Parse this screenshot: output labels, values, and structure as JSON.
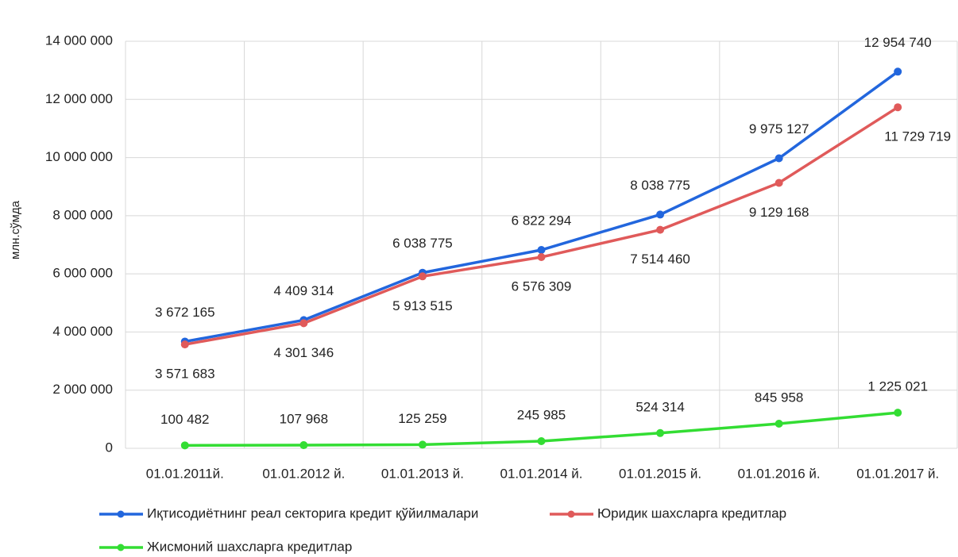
{
  "chart_data": {
    "type": "line",
    "y_label": "млн.сўмда",
    "categories": [
      "01.01.2011й.",
      "01.01.2012 й.",
      "01.01.2013 й.",
      "01.01.2014 й.",
      "01.01.2015 й.",
      "01.01.2016 й.",
      "01.01.2017 й."
    ],
    "series": [
      {
        "name": "Иқтисодиётнинг реал секторига кредит қўйилмалари",
        "color": "#2266dd",
        "values": [
          3672165,
          4409314,
          6038775,
          6822294,
          8038775,
          9975127,
          12954740
        ],
        "value_labels": [
          "3 672 165",
          "4 409 314",
          "6 038 775",
          "6 822 294",
          "8 038 775",
          "9 975 127",
          "12 954 740"
        ]
      },
      {
        "name": "Юридик шахсларга кредитлар",
        "color": "#e05a5a",
        "values": [
          3571683,
          4301346,
          5913515,
          6576309,
          7514460,
          9129168,
          11729719
        ],
        "value_labels": [
          "3 571 683",
          "4 301 346",
          "5 913 515",
          "6 576 309",
          "7 514 460",
          "9 129 168",
          "11 729 719"
        ]
      },
      {
        "name": "Жисмоний шахсларга кредитлар",
        "color": "#33dd33",
        "values": [
          100482,
          107968,
          125259,
          245985,
          524314,
          845958,
          1225021
        ],
        "value_labels": [
          "100 482",
          "107 968",
          "125 259",
          "245 985",
          "524 314",
          "845 958",
          "1 225 021"
        ]
      }
    ],
    "ylim": [
      0,
      14000000
    ],
    "yticks": [
      0,
      {
        "value": 2000000,
        "label": "2 000 000"
      },
      {
        "value": 4000000,
        "label": "4 000 000"
      },
      {
        "value": 6000000,
        "label": "6 000 000"
      },
      {
        "value": 8000000,
        "label": "8 000 000"
      },
      {
        "value": 10000000,
        "label": "10 000 000"
      },
      {
        "value": 12000000,
        "label": "12 000 000"
      },
      {
        "value": 14000000,
        "label": "14 000 000"
      }
    ],
    "grid": true
  }
}
